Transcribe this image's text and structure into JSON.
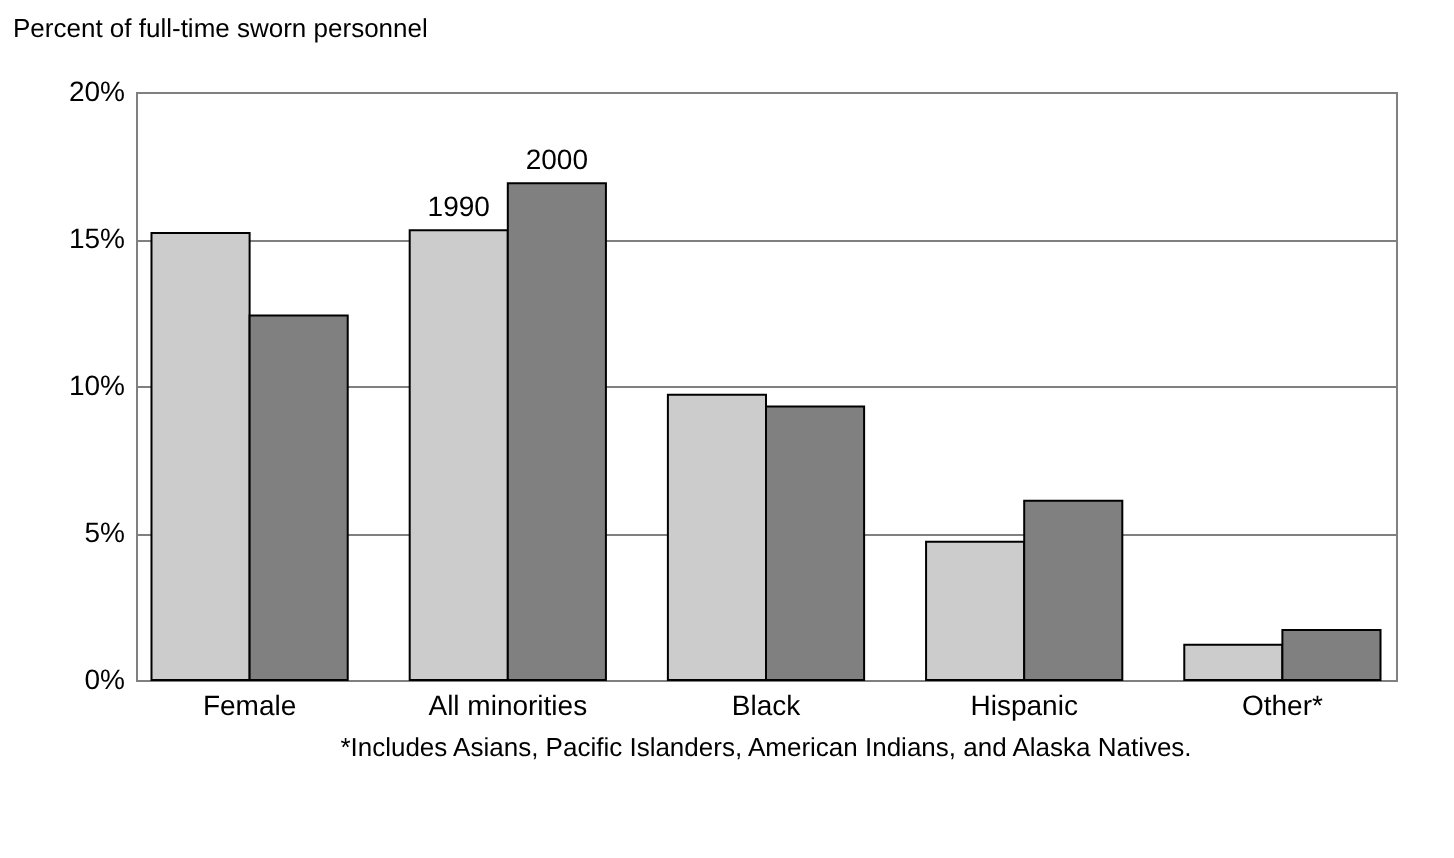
{
  "chart_data": {
    "type": "bar",
    "ylabel": "Percent of full-time sworn personnel",
    "categories": [
      "Female",
      "All minorities",
      "Black",
      "Hispanic",
      "Other*"
    ],
    "series": [
      {
        "name": "1990",
        "color": "#cccccc",
        "values": [
          15.2,
          15.3,
          9.7,
          4.7,
          1.2
        ]
      },
      {
        "name": "2000",
        "color": "#808080",
        "values": [
          12.4,
          16.9,
          9.3,
          6.1,
          1.7
        ]
      }
    ],
    "ylim": [
      0,
      20
    ],
    "yticks": [
      {
        "value": 0,
        "label": "0%"
      },
      {
        "value": 5,
        "label": "5%"
      },
      {
        "value": 10,
        "label": "10%"
      },
      {
        "value": 15,
        "label": "15%"
      },
      {
        "value": 20,
        "label": "20%"
      }
    ],
    "grid": "y",
    "legend": false,
    "annotations": [
      "*Includes Asians, Pacific Islanders, American Indians, and Alaska Natives."
    ]
  }
}
